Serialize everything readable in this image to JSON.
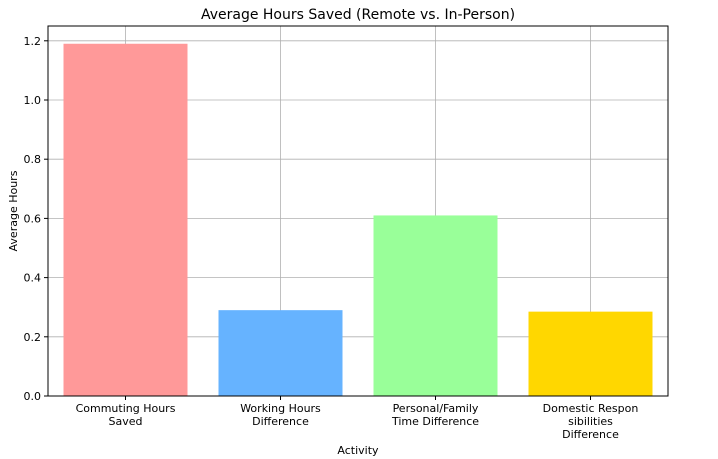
{
  "chart_data": {
    "type": "bar",
    "title": "Average Hours Saved (Remote vs. In-Person)",
    "xlabel": "Activity",
    "ylabel": "Average Hours",
    "categories": [
      [
        "Commuting Hours",
        "Saved"
      ],
      [
        "Working Hours",
        "Difference"
      ],
      [
        "Personal/Family",
        "Time Difference"
      ],
      [
        "Domestic Respon",
        "sibilities",
        "Difference"
      ]
    ],
    "values": [
      1.19,
      0.29,
      0.61,
      0.285
    ],
    "colors": [
      "#ff9999",
      "#66b3ff",
      "#99ff99",
      "#ffd700"
    ],
    "ylim": [
      0,
      1.25
    ],
    "yticks": [
      "0.0",
      "0.2",
      "0.4",
      "0.6",
      "0.8",
      "1.0",
      "1.2"
    ],
    "grid": true
  }
}
